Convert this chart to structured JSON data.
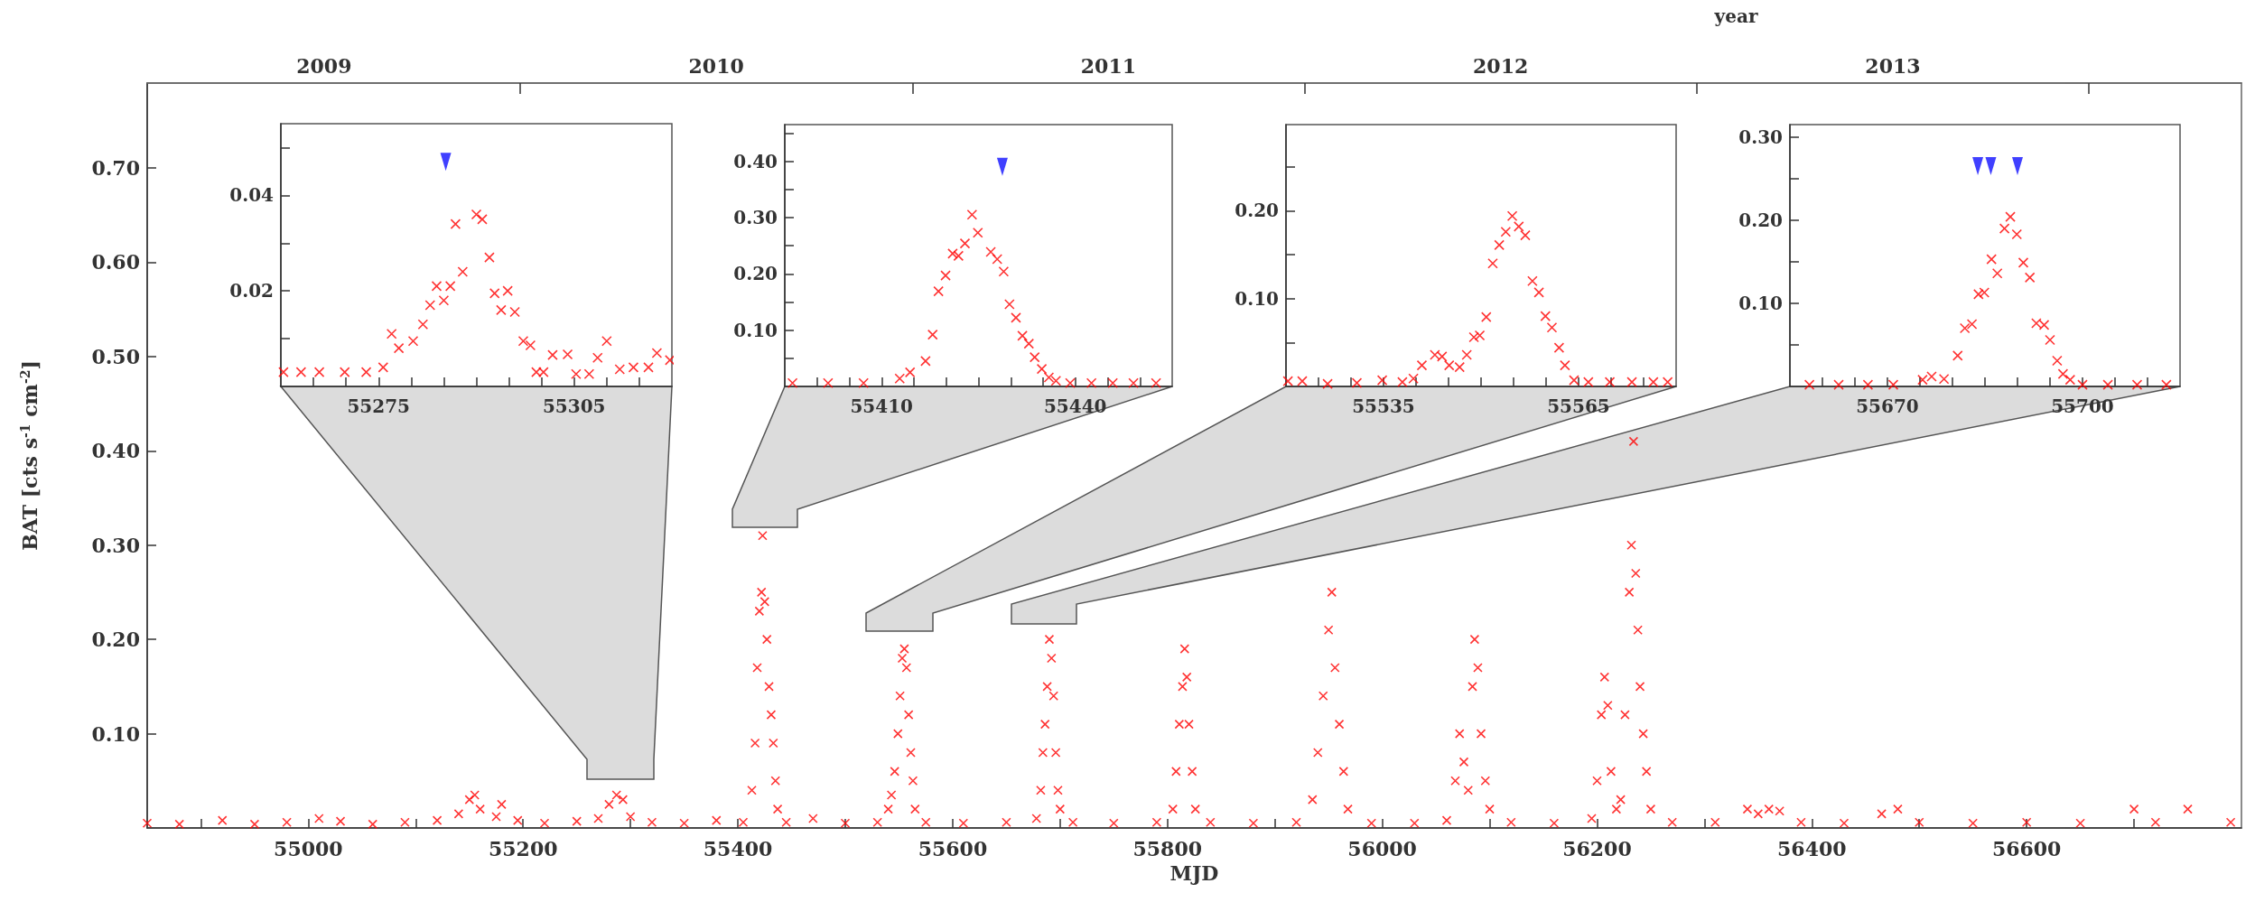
{
  "chart_data": [
    {
      "type": "scatter",
      "xlabel": "MJD",
      "ylabel": "BAT [cts s$^{-1}$ cm$^{-2}$]",
      "x2label": "year",
      "color": "#ff0000",
      "marker": "cross",
      "grid": false,
      "x": [
        54850,
        54880,
        54920,
        54950,
        54980,
        55010,
        55030,
        55060,
        55090,
        55120,
        55140,
        55150,
        55155,
        55160,
        55175,
        55180,
        55195,
        55220,
        55250,
        55270,
        55280,
        55287,
        55293,
        55300,
        55320,
        55350,
        55380,
        55405,
        55413,
        55416,
        55418,
        55420,
        55422,
        55423,
        55425,
        55427,
        55429,
        55431,
        55433,
        55435,
        55437,
        55445,
        55470,
        55500,
        55530,
        55540,
        55543,
        55546,
        55549,
        55551,
        55553,
        55555,
        55557,
        55559,
        55561,
        55563,
        55565,
        55575,
        55610,
        55650,
        55678,
        55682,
        55684,
        55686,
        55688,
        55690,
        55692,
        55694,
        55696,
        55698,
        55700,
        55712,
        55750,
        55790,
        55805,
        55808,
        55811,
        55814,
        55816,
        55818,
        55820,
        55823,
        55826,
        55840,
        55880,
        55920,
        55935,
        55940,
        55945,
        55950,
        55953,
        55956,
        55960,
        55964,
        55968,
        55990,
        56030,
        56060,
        56068,
        56072,
        56076,
        56080,
        56084,
        56086,
        56089,
        56092,
        56096,
        56100,
        56120,
        56160,
        56195,
        56200,
        56204,
        56207,
        56210,
        56213,
        56218,
        56222,
        56226,
        56230,
        56232,
        56234,
        56236,
        56238,
        56240,
        56243,
        56246,
        56250,
        56270,
        56310,
        56340,
        56350,
        56360,
        56370,
        56390,
        56430,
        56465,
        56480,
        56500,
        56550,
        56600,
        56650,
        56700,
        56720,
        56750,
        56790
      ],
      "values": [
        0.005,
        0.004,
        0.008,
        0.004,
        0.006,
        0.01,
        0.007,
        0.004,
        0.006,
        0.008,
        0.015,
        0.03,
        0.035,
        0.02,
        0.012,
        0.025,
        0.008,
        0.005,
        0.007,
        0.01,
        0.025,
        0.035,
        0.03,
        0.012,
        0.006,
        0.005,
        0.008,
        0.006,
        0.04,
        0.09,
        0.17,
        0.23,
        0.25,
        0.31,
        0.24,
        0.2,
        0.15,
        0.12,
        0.09,
        0.05,
        0.02,
        0.006,
        0.01,
        0.005,
        0.006,
        0.02,
        0.035,
        0.06,
        0.1,
        0.14,
        0.18,
        0.19,
        0.17,
        0.12,
        0.08,
        0.05,
        0.02,
        0.006,
        0.005,
        0.006,
        0.01,
        0.04,
        0.08,
        0.11,
        0.15,
        0.2,
        0.18,
        0.14,
        0.08,
        0.04,
        0.02,
        0.006,
        0.005,
        0.006,
        0.02,
        0.06,
        0.11,
        0.15,
        0.19,
        0.16,
        0.11,
        0.06,
        0.02,
        0.006,
        0.005,
        0.006,
        0.03,
        0.08,
        0.14,
        0.21,
        0.25,
        0.17,
        0.11,
        0.06,
        0.02,
        0.005,
        0.005,
        0.008,
        0.05,
        0.1,
        0.07,
        0.04,
        0.15,
        0.2,
        0.17,
        0.1,
        0.05,
        0.02,
        0.006,
        0.005,
        0.01,
        0.05,
        0.12,
        0.16,
        0.13,
        0.06,
        0.02,
        0.03,
        0.12,
        0.25,
        0.3,
        0.41,
        0.27,
        0.21,
        0.15,
        0.1,
        0.06,
        0.02,
        0.006,
        0.006,
        0.02,
        0.015,
        0.02,
        0.018,
        0.006,
        0.005,
        0.015,
        0.02,
        0.006,
        0.005,
        0.006,
        0.005,
        0.02,
        0.006,
        0.02,
        0.006
      ],
      "xlim": [
        54850,
        56800
      ],
      "xticks": [
        {
          "value": 54900,
          "label": null
        },
        55000,
        {
          "value": 55100,
          "label": null
        },
        55200,
        {
          "value": 55300,
          "label": null
        },
        55400,
        {
          "value": 55500,
          "label": null
        },
        55600,
        {
          "value": 55700,
          "label": null
        },
        55800,
        {
          "value": 55900,
          "label": null
        },
        56000,
        {
          "value": 56100,
          "label": null
        },
        56200,
        {
          "value": 56300,
          "label": null
        },
        56400,
        {
          "value": 56500,
          "label": null
        },
        56600,
        {
          "value": 56700,
          "label": null
        }
      ],
      "ylim": [
        0,
        0.79
      ],
      "yticks": [
        {
          "value": 0.1,
          "label": "0.10"
        },
        {
          "value": 0.2,
          "label": "0.20"
        },
        {
          "value": 0.3,
          "label": "0.30"
        },
        {
          "value": 0.4,
          "label": "0.40"
        },
        {
          "value": 0.5,
          "label": "0.50"
        },
        {
          "value": 0.6,
          "label": "0.60"
        },
        {
          "value": 0.7,
          "label": "0.70"
        }
      ],
      "x2lim": [
        2009.049,
        2014.389
      ],
      "x2ticks": [
        {
          "value": 2009.5,
          "label": "2009"
        },
        {
          "value": 2010,
          "label": null
        },
        {
          "value": 2010.5,
          "label": "2010"
        },
        {
          "value": 2011,
          "label": null
        },
        {
          "value": 2011.5,
          "label": "2011"
        },
        {
          "value": 2012,
          "label": null
        },
        {
          "value": 2012.5,
          "label": "2012"
        },
        {
          "value": 2013,
          "label": null
        },
        {
          "value": 2013.5,
          "label": "2013"
        },
        {
          "value": 2014,
          "label": null
        }
      ]
    },
    {
      "type": "scatter",
      "marker": "cross",
      "grid": false,
      "series": [
        {
          "color": "#ff0000",
          "x": [
            55260.4,
            55263.1,
            55265.9,
            55269.8,
            55273.1,
            55275.7,
            55277,
            55278.1,
            55280.3,
            55281.8,
            55282.9,
            55283.9,
            55285,
            55286,
            55286.8,
            55287.9,
            55290,
            55290.9,
            55292,
            55292.8,
            55293.8,
            55294.8,
            55295.9,
            55297.2,
            55298.3,
            55299.2,
            55300.3,
            55301.7,
            55304,
            55305.3,
            55307.3,
            55308.6,
            55310,
            55312,
            55314.1,
            55316.4,
            55317.7,
            55319.7
          ],
          "values": [
            0.003,
            0.003,
            0.003,
            0.003,
            0.003,
            0.004,
            0.011,
            0.008,
            0.0095,
            0.013,
            0.017,
            0.021,
            0.018,
            0.021,
            0.034,
            0.024,
            0.036,
            0.035,
            0.027,
            0.0195,
            0.016,
            0.02,
            0.0156,
            0.0095,
            0.0086,
            0.003,
            0.003,
            0.0066,
            0.0067,
            0.0026,
            0.0026,
            0.006,
            0.0095,
            0.0036,
            0.004,
            0.004,
            0.007,
            0.0055
          ]
        },
        {
          "color": "#1010ff",
          "marker": "triangle",
          "x": [
            55285.3
          ],
          "values": [
            0.047
          ]
        }
      ],
      "xlim": [
        55260,
        55320
      ],
      "xticks": [
        {
          "value": 55265,
          "label": null
        },
        {
          "value": 55270,
          "label": null
        },
        55275,
        {
          "value": 55280,
          "label": null
        },
        {
          "value": 55285,
          "label": null
        },
        {
          "value": 55290,
          "label": null
        },
        {
          "value": 55295,
          "label": null
        },
        {
          "value": 55300,
          "label": null
        },
        55305,
        {
          "value": 55310,
          "label": null
        },
        {
          "value": 55315,
          "label": null
        }
      ],
      "ylim": [
        0,
        0.055
      ],
      "yticks": [
        {
          "value": 0.01,
          "label": null
        },
        {
          "value": 0.02,
          "label": "0.02"
        },
        {
          "value": 0.03,
          "label": null
        },
        {
          "value": 0.04,
          "label": "0.04"
        },
        {
          "value": 0.05,
          "label": null
        }
      ]
    },
    {
      "type": "scatter",
      "marker": "cross",
      "grid": false,
      "series": [
        {
          "color": "#ff0000",
          "x": [
            55396.2,
            55401.7,
            55407.2,
            55412.8,
            55414.4,
            55416.8,
            55417.9,
            55418.8,
            55419.9,
            55421,
            55421.9,
            55422.9,
            55424,
            55424.9,
            55426.9,
            55427.9,
            55428.9,
            55429.8,
            55430.8,
            55431.8,
            55432.8,
            55433.7,
            55434.8,
            55435.9,
            55437,
            55439.2,
            55442.5,
            55445.8,
            55449,
            55452.5
          ],
          "values": [
            0.006,
            0.006,
            0.006,
            0.014,
            0.025,
            0.045,
            0.092,
            0.169,
            0.197,
            0.236,
            0.232,
            0.254,
            0.305,
            0.273,
            0.239,
            0.226,
            0.204,
            0.146,
            0.122,
            0.09,
            0.076,
            0.052,
            0.031,
            0.016,
            0.01,
            0.006,
            0.006,
            0.006,
            0.006,
            0.006
          ]
        },
        {
          "color": "#1010ff",
          "marker": "triangle",
          "x": [
            55428.7
          ],
          "values": [
            0.39
          ]
        }
      ],
      "xlim": [
        55395,
        55455
      ],
      "xticks": [
        {
          "value": 55400,
          "label": null
        },
        {
          "value": 55405,
          "label": null
        },
        55410,
        {
          "value": 55415,
          "label": null
        },
        {
          "value": 55420,
          "label": null
        },
        {
          "value": 55425,
          "label": null
        },
        {
          "value": 55430,
          "label": null
        },
        {
          "value": 55435,
          "label": null
        },
        55440,
        {
          "value": 55445,
          "label": null
        },
        {
          "value": 55450,
          "label": null
        }
      ],
      "ylim": [
        0,
        0.465
      ],
      "yticks": [
        {
          "value": 0.05,
          "label": null
        },
        {
          "value": 0.1,
          "label": "0.10"
        },
        {
          "value": 0.15,
          "label": null
        },
        {
          "value": 0.2,
          "label": "0.20"
        },
        {
          "value": 0.25,
          "label": null
        },
        {
          "value": 0.3,
          "label": "0.30"
        },
        {
          "value": 0.35,
          "label": null
        },
        {
          "value": 0.4,
          "label": "0.40"
        },
        {
          "value": 0.45,
          "label": null
        }
      ]
    },
    {
      "type": "scatter",
      "color": "#ff0000",
      "marker": "cross",
      "grid": false,
      "x": [
        55520.3,
        55522.5,
        55526.4,
        55530.9,
        55534.8,
        55537.9,
        55539.6,
        55540.9,
        55542.9,
        55544,
        55545.1,
        55546.7,
        55547.8,
        55548.9,
        55549.8,
        55550.8,
        55551.8,
        55552.8,
        55553.8,
        55554.8,
        55555.8,
        55556.8,
        55557.9,
        55558.9,
        55559.9,
        55560.9,
        55562,
        55562.9,
        55564.3,
        55566.5,
        55569.8,
        55573.2,
        55576.5,
        55578.7
      ],
      "values": [
        0.006,
        0.006,
        0.003,
        0.004,
        0.007,
        0.005,
        0.009,
        0.024,
        0.036,
        0.034,
        0.024,
        0.022,
        0.036,
        0.056,
        0.058,
        0.079,
        0.14,
        0.161,
        0.176,
        0.194,
        0.182,
        0.172,
        0.12,
        0.107,
        0.08,
        0.067,
        0.044,
        0.024,
        0.007,
        0.005,
        0.005,
        0.005,
        0.005,
        0.005
      ],
      "xlim": [
        55520,
        55580
      ],
      "xticks": [
        {
          "value": 55525,
          "label": null
        },
        {
          "value": 55530,
          "label": null
        },
        55535,
        {
          "value": 55540,
          "label": null
        },
        {
          "value": 55545,
          "label": null
        },
        {
          "value": 55550,
          "label": null
        },
        {
          "value": 55555,
          "label": null
        },
        {
          "value": 55560,
          "label": null
        },
        55565,
        {
          "value": 55570,
          "label": null
        },
        {
          "value": 55575,
          "label": null
        }
      ],
      "ylim": [
        0,
        0.298
      ],
      "yticks": [
        {
          "value": 0.05,
          "label": null
        },
        {
          "value": 0.1,
          "label": "0.10"
        },
        {
          "value": 0.15,
          "label": null
        },
        {
          "value": 0.2,
          "label": "0.20"
        },
        {
          "value": 0.25,
          "label": null
        }
      ]
    },
    {
      "type": "scatter",
      "marker": "cross",
      "grid": false,
      "series": [
        {
          "color": "#ff0000",
          "x": [
            55658,
            55662.5,
            55667,
            55670.9,
            55675.4,
            55676.8,
            55678.7,
            55680.8,
            55681.9,
            55683,
            55684,
            55684.9,
            55686,
            55686.9,
            55688,
            55688.9,
            55689.9,
            55690.9,
            55691.9,
            55692.9,
            55694.1,
            55695,
            55696.1,
            55697,
            55698.1,
            55700,
            55703.9,
            55708.4,
            55712.9
          ],
          "values": [
            0.002,
            0.002,
            0.002,
            0.002,
            0.008,
            0.012,
            0.009,
            0.037,
            0.07,
            0.075,
            0.111,
            0.113,
            0.153,
            0.136,
            0.19,
            0.204,
            0.183,
            0.149,
            0.131,
            0.076,
            0.074,
            0.056,
            0.031,
            0.015,
            0.008,
            0.002,
            0.002,
            0.002,
            0.002
          ]
        },
        {
          "color": "#1010ff",
          "marker": "triangle",
          "x": [
            55683.9,
            55685.9,
            55690
          ],
          "values": [
            0.265,
            0.265,
            0.265
          ]
        }
      ],
      "xlim": [
        55655,
        55715
      ],
      "xticks": [
        {
          "value": 55660,
          "label": null
        },
        {
          "value": 55665,
          "label": null
        },
        55670,
        {
          "value": 55675,
          "label": null
        },
        {
          "value": 55680,
          "label": null
        },
        {
          "value": 55685,
          "label": null
        },
        {
          "value": 55690,
          "label": null
        },
        {
          "value": 55695,
          "label": null
        },
        55700,
        {
          "value": 55705,
          "label": null
        },
        {
          "value": 55710,
          "label": null
        }
      ],
      "ylim": [
        0,
        0.315
      ],
      "yticks": [
        {
          "value": 0.05,
          "label": null
        },
        {
          "value": 0.1,
          "label": "0.10"
        },
        {
          "value": 0.15,
          "label": null
        },
        {
          "value": 0.2,
          "label": "0.20"
        },
        {
          "value": 0.25,
          "label": null
        },
        {
          "value": 0.3,
          "label": "0.30"
        }
      ]
    }
  ]
}
